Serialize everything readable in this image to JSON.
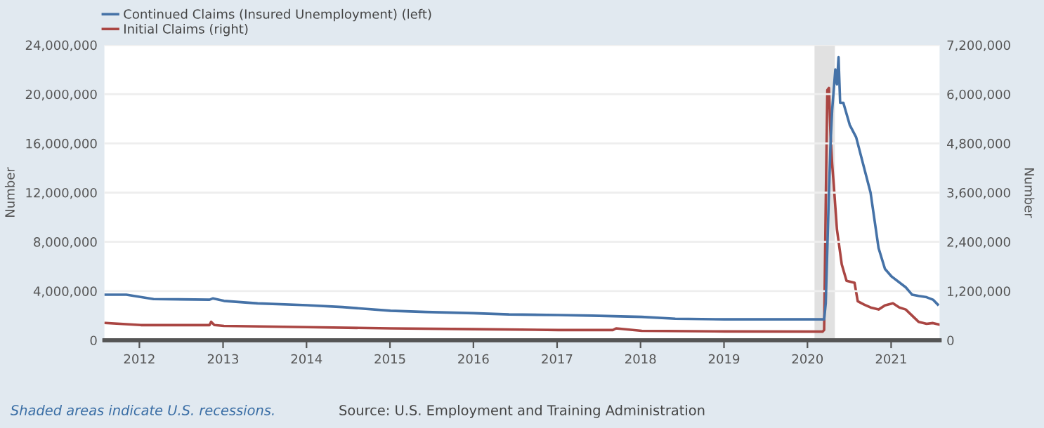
{
  "chart_data": {
    "type": "line",
    "ylabel": "Number",
    "y2label": "Number",
    "legend": "top left",
    "grid": "y",
    "line_style": "solid",
    "marker": "none",
    "xlim": [
      "2011-08-01",
      "2021-08-01"
    ],
    "xticks": [
      {
        "value": "2012-01-01",
        "label": "2012"
      },
      {
        "value": "2013-01-01",
        "label": "2013"
      },
      {
        "value": "2014-01-01",
        "label": "2014"
      },
      {
        "value": "2015-01-01",
        "label": "2015"
      },
      {
        "value": "2016-01-01",
        "label": "2016"
      },
      {
        "value": "2017-01-01",
        "label": "2017"
      },
      {
        "value": "2018-01-01",
        "label": "2018"
      },
      {
        "value": "2019-01-01",
        "label": "2019"
      },
      {
        "value": "2020-01-01",
        "label": "2020"
      },
      {
        "value": "2021-01-01",
        "label": "2021"
      }
    ],
    "ylim": [
      0,
      24000000
    ],
    "yticks": [
      {
        "value": 0,
        "label": "0"
      },
      {
        "value": 4000000,
        "label": "4,000,000"
      },
      {
        "value": 8000000,
        "label": "8,000,000"
      },
      {
        "value": 12000000,
        "label": "12,000,000"
      },
      {
        "value": 16000000,
        "label": "16,000,000"
      },
      {
        "value": 20000000,
        "label": "20,000,000"
      },
      {
        "value": 24000000,
        "label": "24,000,000"
      }
    ],
    "y2lim": [
      0,
      7200000
    ],
    "y2ticks": [
      {
        "value": 0,
        "label": "0"
      },
      {
        "value": 1200000,
        "label": "1,200,000"
      },
      {
        "value": 2400000,
        "label": "2,400,000"
      },
      {
        "value": 3600000,
        "label": "3,600,000"
      },
      {
        "value": 4800000,
        "label": "4,800,000"
      },
      {
        "value": 6000000,
        "label": "6,000,000"
      },
      {
        "value": 7200000,
        "label": "7,200,000"
      }
    ],
    "bands": [
      {
        "axis": "x",
        "from": "2020-02-01",
        "to": "2020-04-30",
        "color": "#e1e1e1"
      }
    ],
    "annotations": [
      "Shaded areas indicate U.S. recessions.",
      "Source: U.S. Employment and Training Administration"
    ],
    "series": [
      {
        "name": "Continued Claims (Insured Unemployment) (left)",
        "color": "#4572a7",
        "x": [
          "2011-08-06",
          "2011-11-05",
          "2012-03-03",
          "2012-11-03",
          "2012-11-17",
          "2013-01-05",
          "2013-06-01",
          "2014-01-04",
          "2014-06-07",
          "2015-01-03",
          "2015-06-06",
          "2016-01-02",
          "2016-06-04",
          "2017-01-07",
          "2017-06-03",
          "2018-01-06",
          "2018-06-02",
          "2019-01-05",
          "2019-06-01",
          "2020-01-04",
          "2020-03-14",
          "2020-03-21",
          "2020-03-28",
          "2020-04-04",
          "2020-04-11",
          "2020-04-18",
          "2020-05-02",
          "2020-05-09",
          "2020-05-16",
          "2020-05-23",
          "2020-06-06",
          "2020-07-04",
          "2020-08-01",
          "2020-09-05",
          "2020-10-03",
          "2020-11-07",
          "2020-12-05",
          "2021-01-02",
          "2021-03-06",
          "2021-04-03",
          "2021-05-01",
          "2021-06-05",
          "2021-07-03",
          "2021-07-24"
        ],
        "values": [
          3700000,
          3700000,
          3350000,
          3300000,
          3400000,
          3200000,
          3000000,
          2850000,
          2700000,
          2400000,
          2300000,
          2200000,
          2100000,
          2050000,
          2000000,
          1900000,
          1750000,
          1700000,
          1700000,
          1700000,
          1700000,
          3000000,
          7500000,
          12000000,
          16000000,
          18700000,
          22000000,
          20800000,
          23000000,
          19300000,
          19300000,
          17500000,
          16500000,
          14000000,
          12000000,
          7500000,
          5800000,
          5200000,
          4300000,
          3700000,
          3600000,
          3500000,
          3300000,
          2900000
        ]
      },
      {
        "name": "Initial Claims (right)",
        "color": "#aa4643",
        "axis": "y2",
        "x": [
          "2011-08-06",
          "2012-01-07",
          "2012-11-03",
          "2012-11-10",
          "2012-11-24",
          "2013-01-05",
          "2014-01-04",
          "2015-01-03",
          "2016-01-02",
          "2017-01-07",
          "2017-09-02",
          "2017-09-16",
          "2018-01-06",
          "2019-01-05",
          "2020-03-07",
          "2020-03-14",
          "2020-03-21",
          "2020-03-28",
          "2020-04-04",
          "2020-04-11",
          "2020-04-18",
          "2020-04-25",
          "2020-05-09",
          "2020-05-30",
          "2020-06-20",
          "2020-07-25",
          "2020-08-08",
          "2020-09-05",
          "2020-10-03",
          "2020-11-07",
          "2020-12-05",
          "2021-01-09",
          "2021-02-06",
          "2021-03-06",
          "2021-04-03",
          "2021-05-01",
          "2021-06-05",
          "2021-07-03",
          "2021-07-31"
        ],
        "values": [
          420000,
          370000,
          370000,
          450000,
          370000,
          350000,
          320000,
          290000,
          270000,
          250000,
          250000,
          290000,
          230000,
          215000,
          210000,
          250000,
          3300000,
          6100000,
          6150000,
          5000000,
          4300000,
          3800000,
          2700000,
          1850000,
          1450000,
          1400000,
          950000,
          870000,
          800000,
          750000,
          850000,
          900000,
          800000,
          750000,
          600000,
          450000,
          400000,
          420000,
          380000
        ]
      }
    ]
  }
}
